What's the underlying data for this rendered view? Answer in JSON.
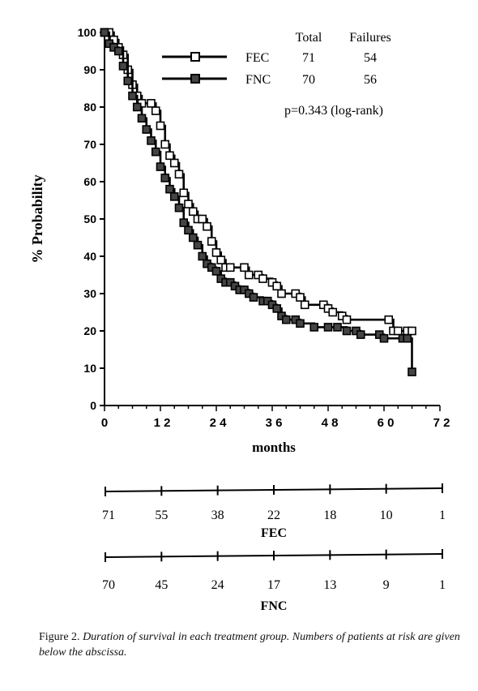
{
  "chart_data": {
    "type": "line",
    "step": true,
    "xlabel": "months",
    "ylabel": "% Probability",
    "xlim": [
      0,
      72
    ],
    "ylim": [
      0,
      100
    ],
    "xticks": [
      0,
      12,
      24,
      36,
      48,
      60,
      72
    ],
    "xtick_labels": [
      "0",
      "1 2",
      "2 4",
      "3 6",
      "4 8",
      "6 0",
      "7 2"
    ],
    "yticks": [
      0,
      10,
      20,
      30,
      40,
      50,
      60,
      70,
      80,
      90,
      100
    ],
    "ytick_labels": [
      "0",
      "10",
      "20",
      "30",
      "40",
      "50",
      "60",
      "70",
      "80",
      "90",
      "100"
    ],
    "legend": {
      "position": "top-right",
      "header_total": "Total",
      "header_failures": "Failures",
      "entries": [
        {
          "name": "FEC",
          "total": "71",
          "failures": "54"
        },
        {
          "name": "FNC",
          "total": "70",
          "failures": "56"
        }
      ]
    },
    "annotation": "p=0.343 (log-rank)",
    "series": [
      {
        "name": "FEC",
        "marker": "open-square",
        "points": [
          [
            0,
            100
          ],
          [
            1,
            100
          ],
          [
            2,
            98
          ],
          [
            3,
            96
          ],
          [
            4,
            94
          ],
          [
            5,
            90
          ],
          [
            6,
            86
          ],
          [
            7,
            83
          ],
          [
            8,
            81
          ],
          [
            10,
            81
          ],
          [
            11,
            79
          ],
          [
            12,
            75
          ],
          [
            13,
            70
          ],
          [
            14,
            67
          ],
          [
            15,
            65
          ],
          [
            16,
            62
          ],
          [
            17,
            57
          ],
          [
            18,
            54
          ],
          [
            19,
            52
          ],
          [
            20,
            50
          ],
          [
            21,
            50
          ],
          [
            22,
            48
          ],
          [
            23,
            44
          ],
          [
            24,
            41
          ],
          [
            25,
            39
          ],
          [
            26,
            37
          ],
          [
            27,
            37
          ],
          [
            30,
            37
          ],
          [
            31,
            35
          ],
          [
            33,
            35
          ],
          [
            34,
            34
          ],
          [
            36,
            33
          ],
          [
            37,
            32
          ],
          [
            38,
            30
          ],
          [
            41,
            30
          ],
          [
            42,
            29
          ],
          [
            43,
            27
          ],
          [
            47,
            27
          ],
          [
            48,
            26
          ],
          [
            49,
            25
          ],
          [
            51,
            24
          ],
          [
            52,
            23
          ],
          [
            61,
            23
          ],
          [
            62,
            20
          ],
          [
            63,
            20
          ],
          [
            65,
            20
          ],
          [
            66,
            20
          ]
        ]
      },
      {
        "name": "FNC",
        "marker": "filled-square",
        "points": [
          [
            0,
            100
          ],
          [
            1,
            97
          ],
          [
            2,
            96
          ],
          [
            3,
            95
          ],
          [
            4,
            91
          ],
          [
            5,
            87
          ],
          [
            6,
            83
          ],
          [
            7,
            80
          ],
          [
            8,
            77
          ],
          [
            9,
            74
          ],
          [
            10,
            71
          ],
          [
            11,
            68
          ],
          [
            12,
            64
          ],
          [
            13,
            61
          ],
          [
            14,
            58
          ],
          [
            15,
            56
          ],
          [
            16,
            53
          ],
          [
            17,
            49
          ],
          [
            18,
            47
          ],
          [
            19,
            45
          ],
          [
            20,
            43
          ],
          [
            21,
            40
          ],
          [
            22,
            38
          ],
          [
            23,
            37
          ],
          [
            24,
            36
          ],
          [
            25,
            34
          ],
          [
            26,
            33
          ],
          [
            27,
            33
          ],
          [
            28,
            32
          ],
          [
            29,
            31
          ],
          [
            30,
            31
          ],
          [
            31,
            30
          ],
          [
            32,
            29
          ],
          [
            34,
            28
          ],
          [
            35,
            28
          ],
          [
            36,
            27
          ],
          [
            37,
            26
          ],
          [
            38,
            24
          ],
          [
            39,
            23
          ],
          [
            41,
            23
          ],
          [
            42,
            22
          ],
          [
            45,
            21
          ],
          [
            48,
            21
          ],
          [
            50,
            21
          ],
          [
            52,
            20
          ],
          [
            54,
            20
          ],
          [
            55,
            19
          ],
          [
            59,
            19
          ],
          [
            60,
            18
          ],
          [
            64,
            18
          ],
          [
            65,
            18
          ],
          [
            66,
            9
          ]
        ]
      }
    ]
  },
  "at_risk": {
    "groups": [
      {
        "name": "FEC",
        "counts": [
          "71",
          "55",
          "38",
          "22",
          "18",
          "10",
          "1"
        ]
      },
      {
        "name": "FNC",
        "counts": [
          "70",
          "45",
          "24",
          "17",
          "13",
          "9",
          "1"
        ]
      }
    ]
  },
  "caption": {
    "label": "Figure 2.",
    "text": "Duration of survival in each treatment group. Numbers of patients at risk are given below the abscissa."
  }
}
